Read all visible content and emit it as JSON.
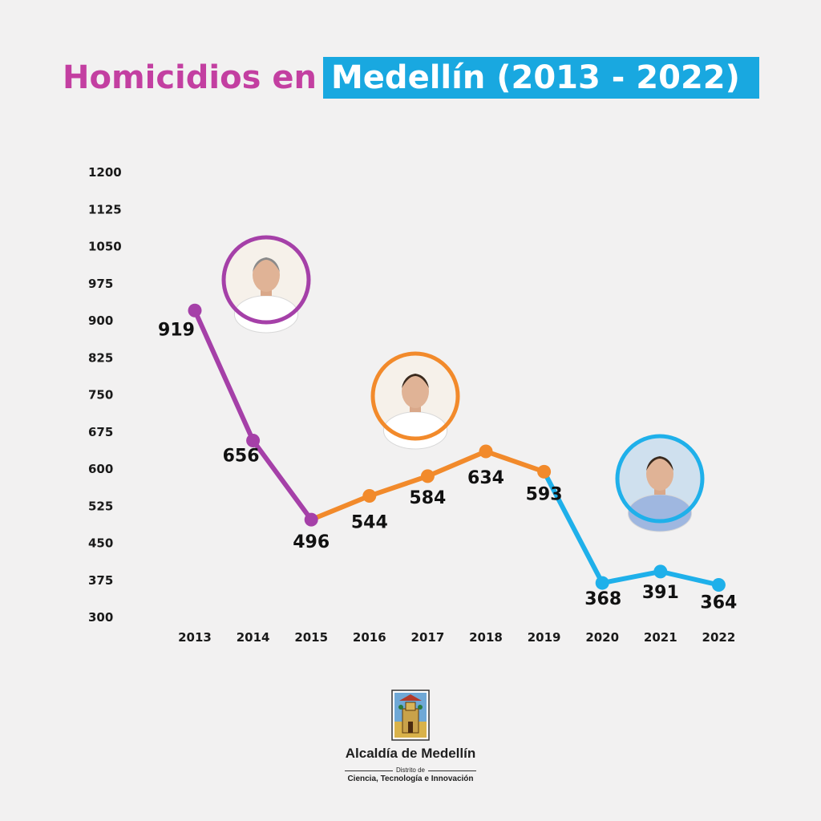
{
  "title": {
    "part1": "Homicidios en",
    "part2": "Medellín (2013 - 2022)"
  },
  "colors": {
    "background": "#f2f1f1",
    "title_pink": "#c33fa1",
    "title_box": "#19a8e0",
    "period1": "#a540a8",
    "period2": "#f28a2b",
    "period3": "#1fb0ea"
  },
  "chart_data": {
    "type": "line",
    "title": "Homicidios en Medellín (2013 - 2022)",
    "xlabel": "",
    "ylabel": "",
    "x": [
      "2013",
      "2014",
      "2015",
      "2016",
      "2017",
      "2018",
      "2019",
      "2020",
      "2021",
      "2022"
    ],
    "values": [
      919,
      656,
      496,
      544,
      584,
      634,
      593,
      368,
      391,
      364
    ],
    "data_labels": [
      "919",
      "656",
      "496",
      "544",
      "584",
      "634",
      "593",
      "368",
      "391",
      "364"
    ],
    "segments": [
      {
        "from": "2013",
        "to": "2015",
        "color": "#a540a8"
      },
      {
        "from": "2015",
        "to": "2019",
        "color": "#f28a2b"
      },
      {
        "from": "2019",
        "to": "2022",
        "color": "#1fb0ea"
      }
    ],
    "yticks": [
      300,
      375,
      450,
      525,
      600,
      675,
      750,
      825,
      900,
      975,
      1050,
      1125,
      1200
    ],
    "ytick_labels": [
      "300",
      "375",
      "450",
      "525",
      "600",
      "675",
      "750",
      "825",
      "900",
      "975",
      "1050",
      "1125",
      "1200"
    ],
    "ylim": [
      300,
      1200
    ],
    "grid": false,
    "legend": "none",
    "portraits": [
      {
        "name": "portrait-1",
        "color": "#a540a8"
      },
      {
        "name": "portrait-2",
        "color": "#f28a2b"
      },
      {
        "name": "portrait-3",
        "color": "#1fb0ea"
      }
    ]
  },
  "footer": {
    "org_name": "Alcaldía de Medellín",
    "district": "Distrito de",
    "tagline": "Ciencia, Tecnología e Innovación",
    "seal_icon": "city-coat-of-arms-icon"
  }
}
